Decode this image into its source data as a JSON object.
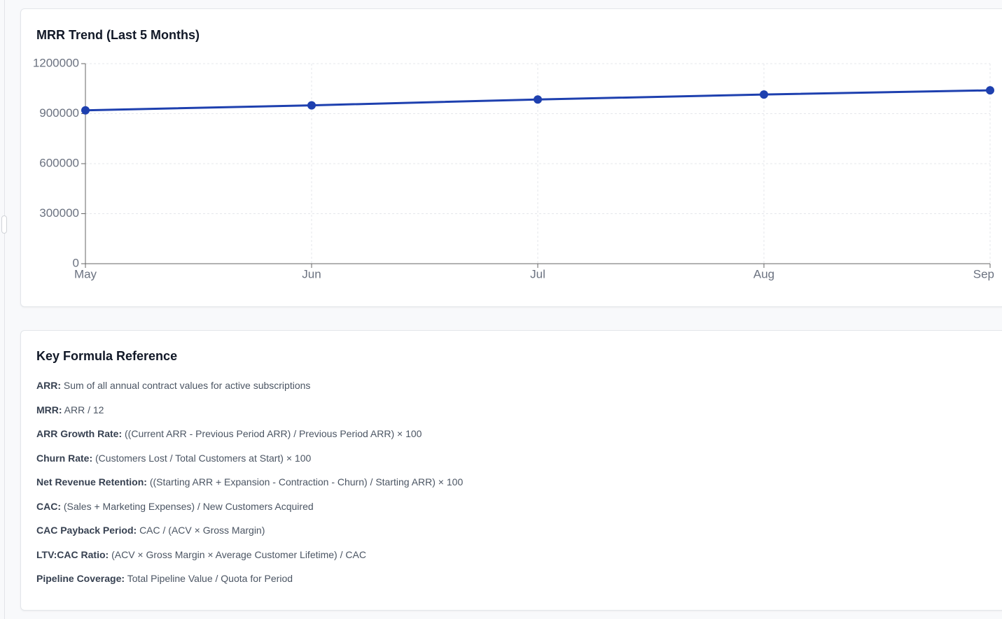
{
  "chart_data": {
    "type": "line",
    "title": "MRR Trend (Last 5 Months)",
    "categories": [
      "May",
      "Jun",
      "Jul",
      "Aug",
      "Sep"
    ],
    "series": [
      {
        "name": "MRR",
        "color": "#1e40af",
        "values": [
          920000,
          950000,
          985000,
          1015000,
          1040000
        ]
      }
    ],
    "ylim": [
      0,
      1200000
    ],
    "yticks": [
      0,
      300000,
      600000,
      900000,
      1200000
    ],
    "grid": true
  },
  "formulas": {
    "title": "Key Formula Reference",
    "items": [
      {
        "term": "ARR:",
        "definition": "Sum of all annual contract values for active subscriptions"
      },
      {
        "term": "MRR:",
        "definition": "ARR / 12"
      },
      {
        "term": "ARR Growth Rate:",
        "definition": "((Current ARR - Previous Period ARR) / Previous Period ARR) × 100"
      },
      {
        "term": "Churn Rate:",
        "definition": "(Customers Lost / Total Customers at Start) × 100"
      },
      {
        "term": "Net Revenue Retention:",
        "definition": "((Starting ARR + Expansion - Contraction - Churn) / Starting ARR) × 100"
      },
      {
        "term": "CAC:",
        "definition": "(Sales + Marketing Expenses) / New Customers Acquired"
      },
      {
        "term": "CAC Payback Period:",
        "definition": "CAC / (ACV × Gross Margin)"
      },
      {
        "term": "LTV:CAC Ratio:",
        "definition": "(ACV × Gross Margin × Average Customer Lifetime) / CAC"
      },
      {
        "term": "Pipeline Coverage:",
        "definition": "Total Pipeline Value / Quota for Period"
      }
    ]
  }
}
